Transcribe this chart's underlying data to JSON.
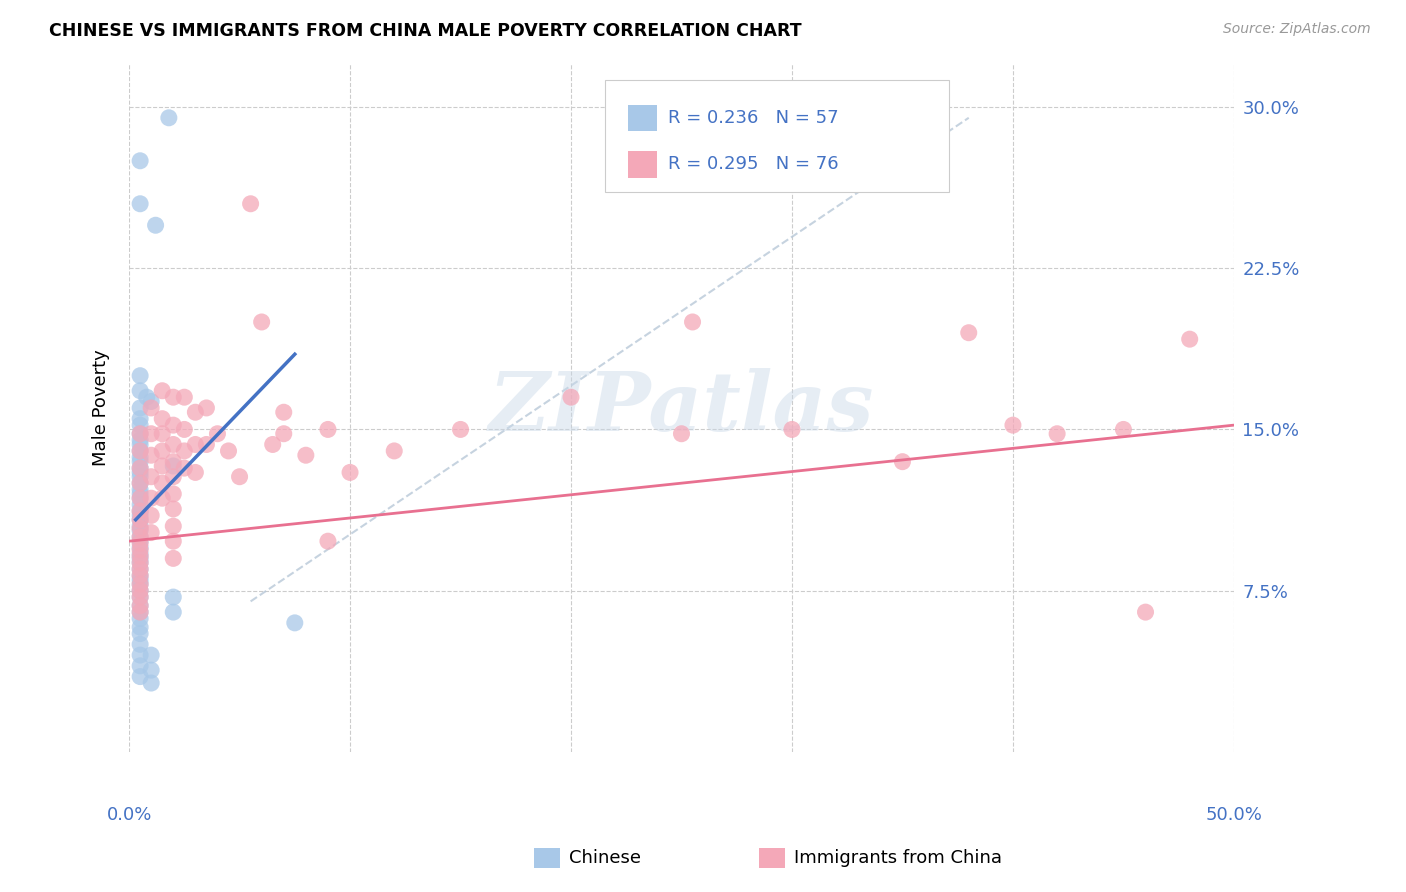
{
  "title": "CHINESE VS IMMIGRANTS FROM CHINA MALE POVERTY CORRELATION CHART",
  "source": "Source: ZipAtlas.com",
  "ylabel": "Male Poverty",
  "xlim": [
    0.0,
    0.5
  ],
  "ylim": [
    -0.02,
    0.32
  ],
  "plot_ylim": [
    0.0,
    0.32
  ],
  "ytick_vals": [
    0.075,
    0.15,
    0.225,
    0.3
  ],
  "ytick_labels": [
    "7.5%",
    "15.0%",
    "22.5%",
    "30.0%"
  ],
  "xtick_vals": [
    0.0,
    0.1,
    0.2,
    0.3,
    0.4,
    0.5
  ],
  "legend_r1": "R = 0.236",
  "legend_n1": "N = 57",
  "legend_r2": "R = 0.295",
  "legend_n2": "N = 76",
  "chinese_color": "#a8c8e8",
  "immigrants_color": "#f4a8b8",
  "chinese_line_color": "#4472c4",
  "immigrants_line_color": "#e87090",
  "dashed_line_color": "#b8c8d8",
  "watermark": "ZIPatlas",
  "chinese_line_x": [
    0.003,
    0.075
  ],
  "chinese_line_y": [
    0.108,
    0.185
  ],
  "immigrants_line_x": [
    0.0,
    0.5
  ],
  "immigrants_line_y": [
    0.098,
    0.152
  ],
  "dashed_line_x": [
    0.055,
    0.38
  ],
  "dashed_line_y": [
    0.07,
    0.295
  ],
  "chinese_scatter": [
    [
      0.018,
      0.295
    ],
    [
      0.005,
      0.275
    ],
    [
      0.005,
      0.255
    ],
    [
      0.012,
      0.245
    ],
    [
      0.005,
      0.175
    ],
    [
      0.005,
      0.168
    ],
    [
      0.008,
      0.165
    ],
    [
      0.01,
      0.163
    ],
    [
      0.005,
      0.16
    ],
    [
      0.005,
      0.155
    ],
    [
      0.005,
      0.152
    ],
    [
      0.005,
      0.148
    ],
    [
      0.005,
      0.145
    ],
    [
      0.005,
      0.143
    ],
    [
      0.005,
      0.14
    ],
    [
      0.005,
      0.137
    ],
    [
      0.005,
      0.135
    ],
    [
      0.005,
      0.132
    ],
    [
      0.005,
      0.13
    ],
    [
      0.005,
      0.128
    ],
    [
      0.005,
      0.125
    ],
    [
      0.005,
      0.122
    ],
    [
      0.005,
      0.12
    ],
    [
      0.005,
      0.118
    ],
    [
      0.005,
      0.115
    ],
    [
      0.005,
      0.112
    ],
    [
      0.005,
      0.11
    ],
    [
      0.005,
      0.108
    ],
    [
      0.005,
      0.105
    ],
    [
      0.005,
      0.103
    ],
    [
      0.005,
      0.1
    ],
    [
      0.005,
      0.098
    ],
    [
      0.005,
      0.095
    ],
    [
      0.005,
      0.092
    ],
    [
      0.005,
      0.09
    ],
    [
      0.005,
      0.088
    ],
    [
      0.005,
      0.085
    ],
    [
      0.005,
      0.082
    ],
    [
      0.005,
      0.08
    ],
    [
      0.005,
      0.078
    ],
    [
      0.005,
      0.075
    ],
    [
      0.005,
      0.072
    ],
    [
      0.005,
      0.068
    ],
    [
      0.005,
      0.065
    ],
    [
      0.005,
      0.062
    ],
    [
      0.005,
      0.058
    ],
    [
      0.005,
      0.055
    ],
    [
      0.005,
      0.05
    ],
    [
      0.005,
      0.045
    ],
    [
      0.005,
      0.04
    ],
    [
      0.005,
      0.035
    ],
    [
      0.02,
      0.072
    ],
    [
      0.02,
      0.065
    ],
    [
      0.075,
      0.06
    ],
    [
      0.02,
      0.133
    ],
    [
      0.01,
      0.045
    ],
    [
      0.01,
      0.038
    ],
    [
      0.01,
      0.032
    ]
  ],
  "immigrants_scatter": [
    [
      0.005,
      0.148
    ],
    [
      0.005,
      0.14
    ],
    [
      0.005,
      0.132
    ],
    [
      0.005,
      0.125
    ],
    [
      0.005,
      0.118
    ],
    [
      0.005,
      0.112
    ],
    [
      0.005,
      0.108
    ],
    [
      0.005,
      0.104
    ],
    [
      0.005,
      0.1
    ],
    [
      0.005,
      0.097
    ],
    [
      0.005,
      0.094
    ],
    [
      0.005,
      0.091
    ],
    [
      0.005,
      0.088
    ],
    [
      0.005,
      0.085
    ],
    [
      0.005,
      0.082
    ],
    [
      0.005,
      0.078
    ],
    [
      0.005,
      0.075
    ],
    [
      0.005,
      0.072
    ],
    [
      0.005,
      0.068
    ],
    [
      0.005,
      0.065
    ],
    [
      0.01,
      0.16
    ],
    [
      0.01,
      0.148
    ],
    [
      0.01,
      0.138
    ],
    [
      0.01,
      0.128
    ],
    [
      0.01,
      0.118
    ],
    [
      0.01,
      0.11
    ],
    [
      0.01,
      0.102
    ],
    [
      0.015,
      0.168
    ],
    [
      0.015,
      0.155
    ],
    [
      0.015,
      0.148
    ],
    [
      0.015,
      0.14
    ],
    [
      0.015,
      0.133
    ],
    [
      0.015,
      0.125
    ],
    [
      0.015,
      0.118
    ],
    [
      0.02,
      0.165
    ],
    [
      0.02,
      0.152
    ],
    [
      0.02,
      0.143
    ],
    [
      0.02,
      0.135
    ],
    [
      0.02,
      0.128
    ],
    [
      0.02,
      0.12
    ],
    [
      0.02,
      0.113
    ],
    [
      0.02,
      0.105
    ],
    [
      0.02,
      0.098
    ],
    [
      0.02,
      0.09
    ],
    [
      0.025,
      0.165
    ],
    [
      0.025,
      0.15
    ],
    [
      0.025,
      0.14
    ],
    [
      0.025,
      0.132
    ],
    [
      0.03,
      0.158
    ],
    [
      0.03,
      0.143
    ],
    [
      0.03,
      0.13
    ],
    [
      0.035,
      0.16
    ],
    [
      0.035,
      0.143
    ],
    [
      0.04,
      0.148
    ],
    [
      0.045,
      0.14
    ],
    [
      0.05,
      0.128
    ],
    [
      0.055,
      0.255
    ],
    [
      0.06,
      0.2
    ],
    [
      0.065,
      0.143
    ],
    [
      0.07,
      0.158
    ],
    [
      0.07,
      0.148
    ],
    [
      0.08,
      0.138
    ],
    [
      0.09,
      0.15
    ],
    [
      0.09,
      0.098
    ],
    [
      0.1,
      0.13
    ],
    [
      0.12,
      0.14
    ],
    [
      0.15,
      0.15
    ],
    [
      0.2,
      0.165
    ],
    [
      0.25,
      0.148
    ],
    [
      0.255,
      0.2
    ],
    [
      0.3,
      0.15
    ],
    [
      0.35,
      0.135
    ],
    [
      0.38,
      0.195
    ],
    [
      0.4,
      0.152
    ],
    [
      0.42,
      0.148
    ],
    [
      0.45,
      0.15
    ],
    [
      0.46,
      0.065
    ],
    [
      0.48,
      0.192
    ]
  ]
}
